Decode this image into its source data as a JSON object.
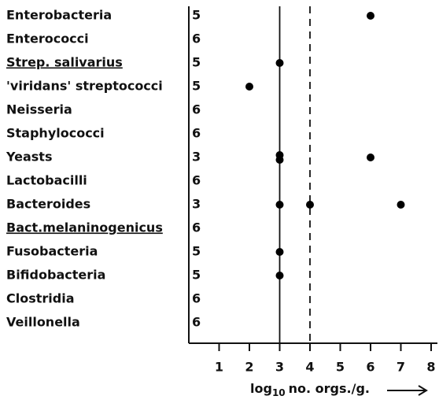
{
  "chart_data": {
    "type": "dot",
    "categories": [
      "Enterobacteria",
      "Enterococci",
      "Strep. salivarius",
      "'viridans' streptococci",
      "Neisseria",
      "Staphylococci",
      "Yeasts",
      "Lactobacilli",
      "Bacteroides",
      "Bact.melaninogenicus",
      "Fusobacteria",
      "Bifidobacteria",
      "Clostridia",
      "Veillonella"
    ],
    "underlined": [
      false,
      false,
      true,
      false,
      false,
      false,
      false,
      false,
      false,
      true,
      false,
      false,
      false,
      false
    ],
    "counts": [
      5,
      6,
      5,
      5,
      6,
      6,
      3,
      6,
      3,
      6,
      5,
      5,
      6,
      6
    ],
    "points": [
      [
        6
      ],
      [],
      [
        3
      ],
      [
        2
      ],
      [],
      [],
      [
        3,
        3,
        6
      ],
      [],
      [
        3,
        4,
        7
      ],
      [],
      [
        3
      ],
      [
        3
      ],
      [],
      []
    ],
    "color": "#000000",
    "reference_lines": [
      {
        "x": 3,
        "style": "solid"
      },
      {
        "x": 4,
        "style": "dashed"
      }
    ],
    "xlim": [
      0,
      8.15
    ],
    "xticks": [
      1,
      2,
      3,
      4,
      5,
      6,
      7,
      8
    ],
    "x_label": {
      "base": "log",
      "subscript": "10",
      "rest": "no. orgs./g."
    }
  }
}
